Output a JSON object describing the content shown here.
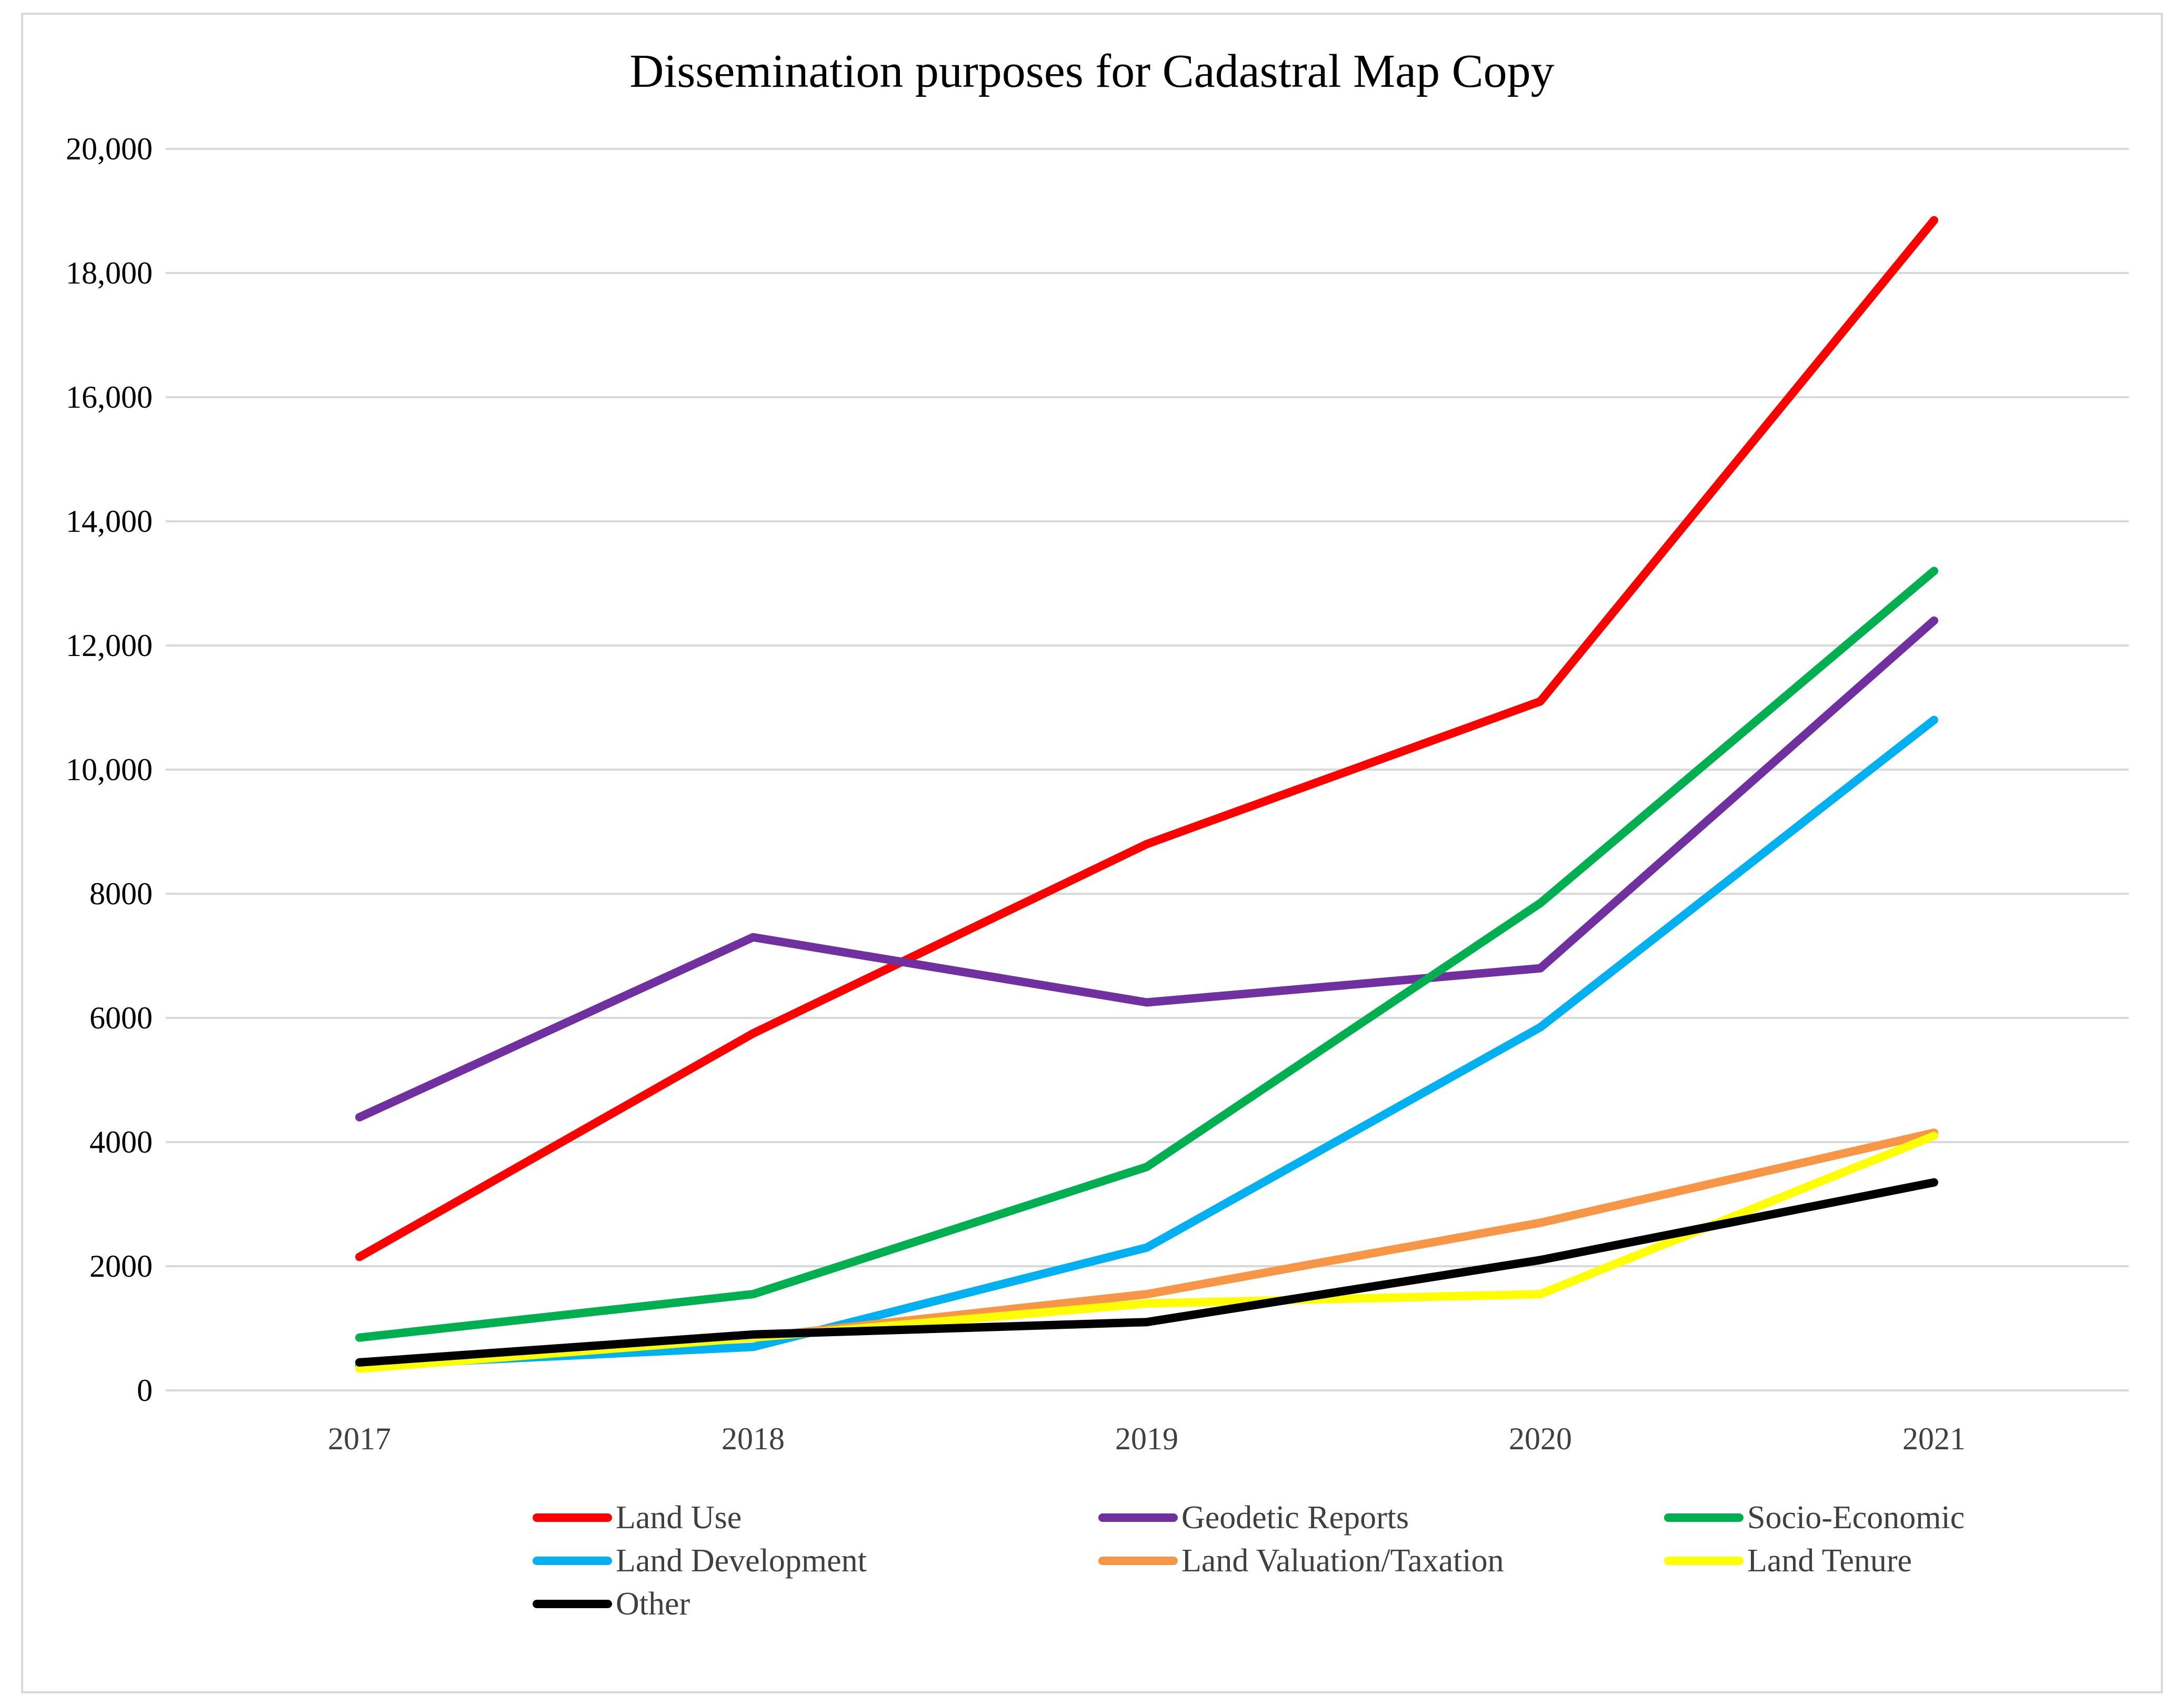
{
  "chart_data": {
    "type": "line",
    "title": "Dissemination purposes for Cadastral Map Copy",
    "xlabel": "",
    "ylabel": "",
    "ylim": [
      0,
      20000
    ],
    "grid": true,
    "legend_position": "bottom",
    "categories": [
      "2017",
      "2018",
      "2019",
      "2020",
      "2021"
    ],
    "y_ticks": [
      {
        "value": 0,
        "label": "0"
      },
      {
        "value": 2000,
        "label": "2000"
      },
      {
        "value": 4000,
        "label": "4000"
      },
      {
        "value": 6000,
        "label": "6000"
      },
      {
        "value": 8000,
        "label": "8000"
      },
      {
        "value": 10000,
        "label": "10,000"
      },
      {
        "value": 12000,
        "label": "12,000"
      },
      {
        "value": 14000,
        "label": "14,000"
      },
      {
        "value": 16000,
        "label": "16,000"
      },
      {
        "value": 18000,
        "label": "18,000"
      },
      {
        "value": 20000,
        "label": "20,000"
      }
    ],
    "series": [
      {
        "name": "Land Use",
        "color": "#ff0000",
        "values": [
          2150,
          5750,
          8800,
          11100,
          18850
        ]
      },
      {
        "name": "Geodetic Reports",
        "color": "#7030a0",
        "values": [
          4400,
          7300,
          6250,
          6800,
          12400
        ]
      },
      {
        "name": "Socio-Economic",
        "color": "#00b050",
        "values": [
          850,
          1550,
          3600,
          7850,
          13200
        ]
      },
      {
        "name": "Land Development",
        "color": "#00b0f0",
        "values": [
          400,
          700,
          2300,
          5850,
          10800
        ]
      },
      {
        "name": "Land Valuation/Taxation",
        "color": "#f79646",
        "values": [
          450,
          850,
          1550,
          2700,
          4150
        ]
      },
      {
        "name": "Land Tenure",
        "color": "#ffff00",
        "values": [
          350,
          850,
          1400,
          1550,
          4100
        ]
      },
      {
        "name": "Other",
        "color": "#000000",
        "values": [
          450,
          900,
          1100,
          2100,
          3350
        ]
      }
    ]
  }
}
